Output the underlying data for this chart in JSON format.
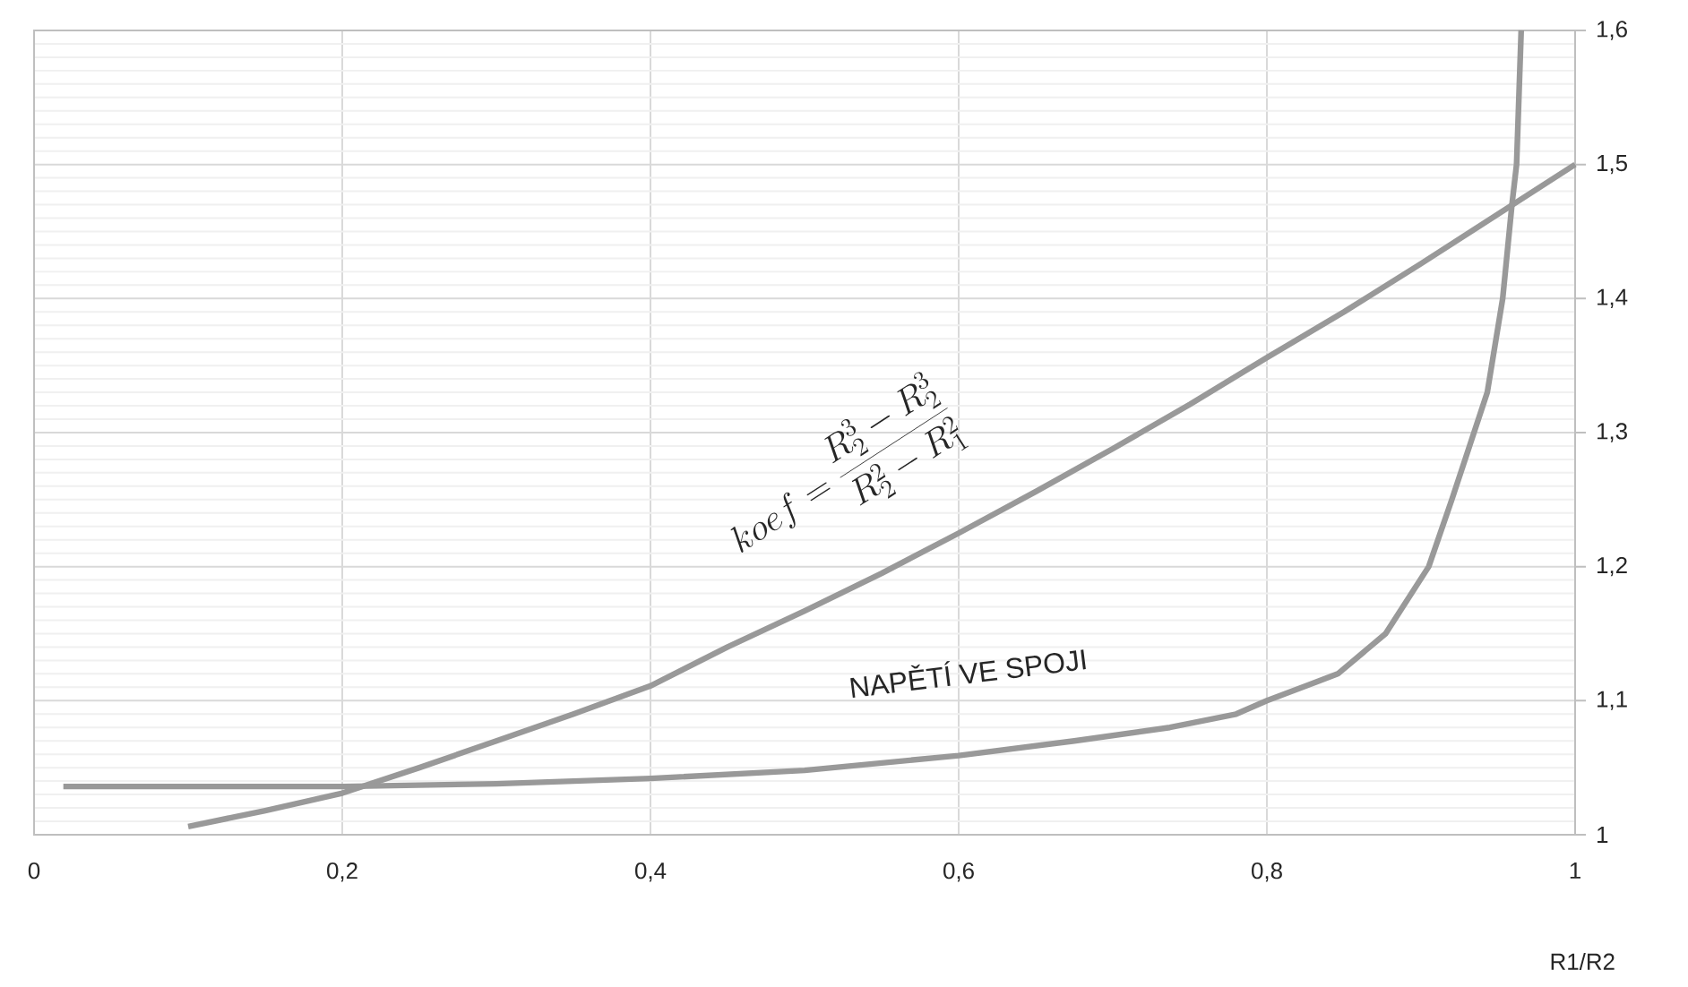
{
  "chart_data": {
    "type": "line",
    "xlabel": "R1/R2",
    "annotations": [
      "koef = \\frac{R_2^3 - R_2^3}{R_2^2 - R_1^2}",
      "NAPĚTÍ VE SPOJI"
    ],
    "series": [
      {
        "color": "#999999",
        "x": [
          0.1,
          0.15,
          0.2,
          0.25,
          0.3,
          0.35,
          0.4,
          0.45,
          0.5,
          0.55,
          0.6,
          0.65,
          0.7,
          0.75,
          0.8,
          0.85,
          0.9,
          0.95,
          1.0
        ],
        "values": [
          1.006,
          1.018,
          1.031,
          1.05,
          1.07,
          1.09,
          1.111,
          1.14,
          1.167,
          1.195,
          1.225,
          1.256,
          1.288,
          1.321,
          1.356,
          1.39,
          1.426,
          1.463,
          1.5
        ]
      },
      {
        "color": "#999999",
        "x": [
          0.019,
          0.1,
          0.2,
          0.3,
          0.4,
          0.5,
          0.6,
          0.675,
          0.737,
          0.78,
          0.8,
          0.846,
          0.877,
          0.905,
          0.92,
          0.943,
          0.953,
          0.959,
          0.962,
          0.965
        ],
        "values": [
          1.036,
          1.036,
          1.036,
          1.038,
          1.042,
          1.048,
          1.059,
          1.07,
          1.08,
          1.09,
          1.1,
          1.12,
          1.15,
          1.2,
          1.25,
          1.33,
          1.4,
          1.47,
          1.5,
          1.6
        ]
      }
    ],
    "xlim": [
      0,
      1
    ],
    "ylim": [
      1,
      1.6
    ],
    "xticks": [
      0,
      {
        "value": 0.2,
        "label": "0,2"
      },
      {
        "value": 0.4,
        "label": "0,4"
      },
      {
        "value": 0.6,
        "label": "0,6"
      },
      {
        "value": 0.8,
        "label": "0,8"
      },
      1
    ],
    "yticks": [
      1,
      {
        "value": 1.1,
        "label": "1,1"
      },
      {
        "value": 1.2,
        "label": "1,2"
      },
      {
        "value": 1.3,
        "label": "1,3"
      },
      {
        "value": 1.4,
        "label": "1,4"
      },
      {
        "value": 1.5,
        "label": "1,5"
      },
      {
        "value": 1.6,
        "label": "1,6"
      }
    ],
    "grid": true,
    "marker": "none",
    "line_style": "solid"
  }
}
